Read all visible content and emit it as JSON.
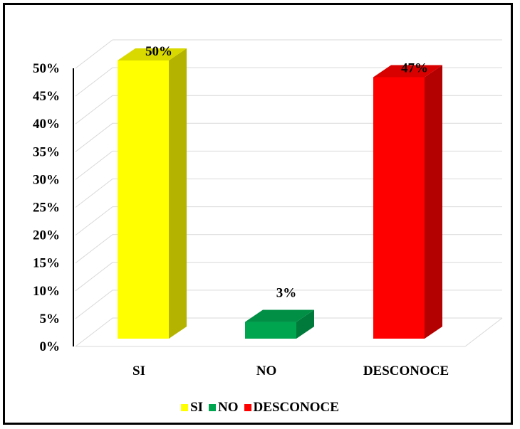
{
  "chart_data": {
    "type": "bar",
    "categories": [
      "SI",
      "NO",
      "DESCONOCE"
    ],
    "values": [
      50,
      3,
      47
    ],
    "data_labels": [
      "50%",
      "3%",
      "47%"
    ],
    "colors": [
      "#ffff00",
      "#00a550",
      "#ff0000"
    ],
    "side_colors": [
      "#b3b300",
      "#007a3a",
      "#b30000"
    ],
    "top_colors": [
      "#d9d900",
      "#008f45",
      "#d90000"
    ],
    "y_ticks": [
      "0%",
      "5%",
      "10%",
      "15%",
      "20%",
      "25%",
      "30%",
      "35%",
      "40%",
      "45%",
      "50%"
    ],
    "ylim": [
      0,
      50
    ],
    "grid": true,
    "legend_position": "bottom",
    "style": "3d-column"
  },
  "legend": {
    "items": [
      {
        "label": "SI",
        "color": "#ffff00"
      },
      {
        "label": "NO",
        "color": "#00a550"
      },
      {
        "label": "DESCONOCE",
        "color": "#ff0000"
      }
    ]
  }
}
